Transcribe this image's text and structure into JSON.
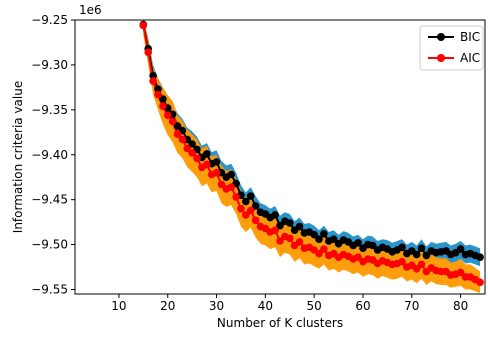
{
  "chart_data": {
    "type": "line",
    "scale_label": "1e6",
    "xlabel": "Number of K clusters",
    "ylabel": "Information criteria value",
    "xlim": [
      1,
      85
    ],
    "ylim": [
      -9.555,
      -9.25
    ],
    "xticks": [
      10,
      20,
      30,
      40,
      50,
      60,
      70,
      80
    ],
    "yticks": [
      -9.25,
      -9.3,
      -9.35,
      -9.4,
      -9.45,
      -9.5,
      -9.55
    ],
    "ytick_labels": [
      "−9.25",
      "−9.30",
      "−9.35",
      "−9.40",
      "−9.45",
      "−9.50",
      "−9.55"
    ],
    "legend_position": "top-right",
    "grid": false,
    "x": [
      15,
      16,
      17,
      18,
      19,
      20,
      21,
      22,
      23,
      24,
      25,
      26,
      27,
      28,
      29,
      30,
      31,
      32,
      33,
      34,
      35,
      36,
      37,
      38,
      39,
      40,
      41,
      42,
      43,
      44,
      45,
      46,
      47,
      48,
      49,
      50,
      51,
      52,
      53,
      54,
      55,
      56,
      57,
      58,
      59,
      60,
      61,
      62,
      63,
      64,
      65,
      66,
      67,
      68,
      69,
      70,
      71,
      72,
      73,
      74,
      75,
      76,
      77,
      78,
      79,
      80,
      81,
      82,
      83,
      84
    ],
    "series": [
      {
        "name": "BIC",
        "color": "#000000",
        "band_color": "#1f8fc8",
        "values": [
          -9.255,
          -9.282,
          -9.312,
          -9.327,
          -9.338,
          -9.348,
          -9.355,
          -9.368,
          -9.373,
          -9.383,
          -9.388,
          -9.394,
          -9.403,
          -9.399,
          -9.41,
          -9.408,
          -9.42,
          -9.425,
          -9.422,
          -9.432,
          -9.445,
          -9.452,
          -9.446,
          -9.457,
          -9.464,
          -9.466,
          -9.47,
          -9.467,
          -9.479,
          -9.474,
          -9.476,
          -9.484,
          -9.48,
          -9.487,
          -9.486,
          -9.489,
          -9.494,
          -9.488,
          -9.496,
          -9.494,
          -9.499,
          -9.495,
          -9.497,
          -9.501,
          -9.498,
          -9.504,
          -9.5,
          -9.501,
          -9.506,
          -9.503,
          -9.505,
          -9.508,
          -9.506,
          -9.503,
          -9.51,
          -9.507,
          -9.511,
          -9.504,
          -9.512,
          -9.507,
          -9.509,
          -9.508,
          -9.507,
          -9.511,
          -9.509,
          -9.505,
          -9.511,
          -9.51,
          -9.512,
          -9.514
        ],
        "lower": [
          -9.262,
          -9.292,
          -9.322,
          -9.342,
          -9.352,
          -9.364,
          -9.37,
          -9.384,
          -9.388,
          -9.398,
          -9.402,
          -9.408,
          -9.416,
          -9.412,
          -9.424,
          -9.422,
          -9.434,
          -9.438,
          -9.436,
          -9.446,
          -9.456,
          -9.463,
          -9.458,
          -9.468,
          -9.474,
          -9.476,
          -9.48,
          -9.478,
          -9.489,
          -9.485,
          -9.487,
          -9.494,
          -9.49,
          -9.497,
          -9.496,
          -9.499,
          -9.503,
          -9.498,
          -9.506,
          -9.504,
          -9.508,
          -9.505,
          -9.507,
          -9.511,
          -9.508,
          -9.514,
          -9.51,
          -9.511,
          -9.516,
          -9.513,
          -9.515,
          -9.518,
          -9.516,
          -9.514,
          -9.52,
          -9.517,
          -9.521,
          -9.515,
          -9.522,
          -9.517,
          -9.519,
          -9.518,
          -9.517,
          -9.521,
          -9.519,
          -9.516,
          -9.521,
          -9.52,
          -9.522,
          -9.524
        ],
        "upper": [
          -9.248,
          -9.27,
          -9.3,
          -9.315,
          -9.325,
          -9.334,
          -9.342,
          -9.354,
          -9.36,
          -9.37,
          -9.374,
          -9.38,
          -9.39,
          -9.387,
          -9.397,
          -9.395,
          -9.407,
          -9.412,
          -9.41,
          -9.42,
          -9.434,
          -9.442,
          -9.436,
          -9.446,
          -9.454,
          -9.456,
          -9.46,
          -9.457,
          -9.468,
          -9.464,
          -9.466,
          -9.474,
          -9.47,
          -9.477,
          -9.476,
          -9.479,
          -9.484,
          -9.479,
          -9.486,
          -9.484,
          -9.489,
          -9.485,
          -9.487,
          -9.491,
          -9.489,
          -9.494,
          -9.49,
          -9.491,
          -9.496,
          -9.494,
          -9.495,
          -9.498,
          -9.496,
          -9.494,
          -9.5,
          -9.497,
          -9.501,
          -9.494,
          -9.502,
          -9.497,
          -9.499,
          -9.498,
          -9.497,
          -9.501,
          -9.499,
          -9.496,
          -9.501,
          -9.5,
          -9.502,
          -9.504
        ]
      },
      {
        "name": "AIC",
        "color": "#ff0000",
        "band_color": "#ff9900",
        "values": [
          -9.256,
          -9.286,
          -9.318,
          -9.333,
          -9.346,
          -9.356,
          -9.363,
          -9.377,
          -9.383,
          -9.393,
          -9.398,
          -9.404,
          -9.414,
          -9.411,
          -9.422,
          -9.42,
          -9.433,
          -9.438,
          -9.436,
          -9.447,
          -9.46,
          -9.467,
          -9.462,
          -9.473,
          -9.48,
          -9.482,
          -9.486,
          -9.484,
          -9.496,
          -9.491,
          -9.493,
          -9.501,
          -9.497,
          -9.504,
          -9.503,
          -9.506,
          -9.51,
          -9.505,
          -9.512,
          -9.51,
          -9.514,
          -9.511,
          -9.513,
          -9.516,
          -9.514,
          -9.519,
          -9.516,
          -9.517,
          -9.521,
          -9.518,
          -9.52,
          -9.522,
          -9.521,
          -9.519,
          -9.525,
          -9.523,
          -9.527,
          -9.522,
          -9.53,
          -9.526,
          -9.529,
          -9.53,
          -9.53,
          -9.534,
          -9.533,
          -9.531,
          -9.536,
          -9.536,
          -9.539,
          -9.542
        ],
        "lower": [
          -9.266,
          -9.3,
          -9.333,
          -9.35,
          -9.366,
          -9.378,
          -9.386,
          -9.398,
          -9.404,
          -9.414,
          -9.419,
          -9.425,
          -9.435,
          -9.432,
          -9.442,
          -9.44,
          -9.454,
          -9.458,
          -9.456,
          -9.466,
          -9.48,
          -9.486,
          -9.481,
          -9.492,
          -9.499,
          -9.501,
          -9.505,
          -9.503,
          -9.514,
          -9.509,
          -9.511,
          -9.519,
          -9.515,
          -9.522,
          -9.521,
          -9.524,
          -9.527,
          -9.522,
          -9.529,
          -9.527,
          -9.531,
          -9.528,
          -9.53,
          -9.533,
          -9.531,
          -9.536,
          -9.533,
          -9.534,
          -9.538,
          -9.535,
          -9.537,
          -9.539,
          -9.538,
          -9.536,
          -9.541,
          -9.539,
          -9.543,
          -9.538,
          -9.545,
          -9.541,
          -9.544,
          -9.545,
          -9.545,
          -9.548,
          -9.547,
          -9.546,
          -9.55,
          -9.55,
          -9.552,
          -9.554
        ],
        "upper": [
          -9.246,
          -9.272,
          -9.303,
          -9.316,
          -9.326,
          -9.334,
          -9.34,
          -9.356,
          -9.362,
          -9.372,
          -9.377,
          -9.383,
          -9.393,
          -9.39,
          -9.402,
          -9.4,
          -9.412,
          -9.418,
          -9.416,
          -9.428,
          -9.44,
          -9.448,
          -9.443,
          -9.454,
          -9.461,
          -9.463,
          -9.467,
          -9.465,
          -9.478,
          -9.473,
          -9.475,
          -9.483,
          -9.479,
          -9.486,
          -9.485,
          -9.488,
          -9.493,
          -9.488,
          -9.495,
          -9.493,
          -9.497,
          -9.494,
          -9.496,
          -9.499,
          -9.497,
          -9.502,
          -9.499,
          -9.5,
          -9.504,
          -9.501,
          -9.503,
          -9.505,
          -9.504,
          -9.502,
          -9.509,
          -9.507,
          -9.511,
          -9.506,
          -9.515,
          -9.511,
          -9.514,
          -9.515,
          -9.515,
          -9.52,
          -9.519,
          -9.516,
          -9.522,
          -9.522,
          -9.526,
          -9.53
        ]
      }
    ]
  }
}
